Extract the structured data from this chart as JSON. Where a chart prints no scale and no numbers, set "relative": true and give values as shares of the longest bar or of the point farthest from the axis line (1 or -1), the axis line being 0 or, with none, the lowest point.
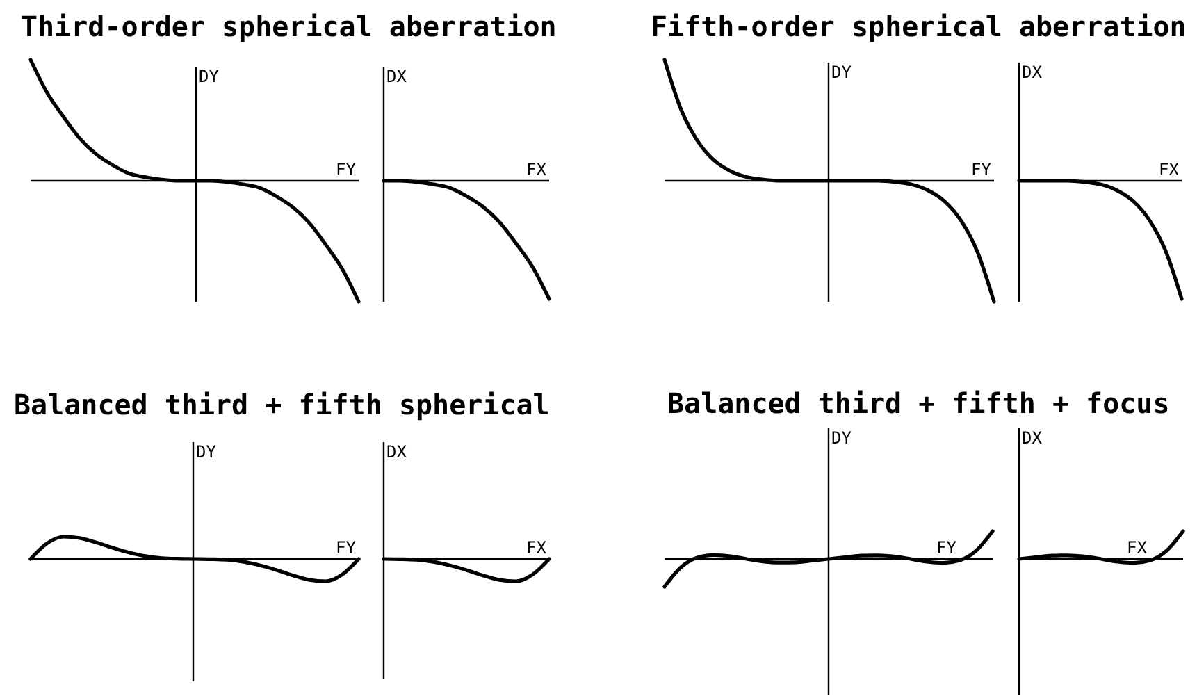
{
  "chart_data": [
    {
      "type": "line",
      "title": "Third-order spherical aberration",
      "xlabel": "FY",
      "ylabel": "DY",
      "relative": true,
      "color": "#000000",
      "categories": [
        null,
        null,
        null,
        null,
        null,
        null,
        null,
        null,
        null,
        null,
        null,
        null,
        null,
        null,
        null,
        null,
        null,
        null,
        null,
        null,
        null
      ],
      "values": [
        1,
        0.73,
        0.53,
        0.35,
        0.22,
        0.13,
        0.06,
        0.03,
        0.01,
        0,
        0,
        0,
        -0.01,
        -0.03,
        -0.06,
        -0.13,
        -0.22,
        -0.35,
        -0.53,
        -0.73,
        -1
      ]
    },
    {
      "type": "line",
      "xlabel": "FX",
      "ylabel": "DX",
      "relative": true,
      "color": "#000000",
      "categories": [
        null,
        null,
        null,
        null,
        null,
        null,
        null,
        null,
        null,
        null,
        null
      ],
      "values": [
        0,
        0,
        -0.01,
        -0.03,
        -0.06,
        -0.13,
        -0.22,
        -0.35,
        -0.53,
        -0.73,
        -1
      ]
    },
    {
      "type": "line",
      "title": "Fifth-order spherical aberration",
      "xlabel": "FY",
      "ylabel": "DY",
      "relative": true,
      "color": "#000000",
      "categories": [
        null,
        null,
        null,
        null,
        null,
        null,
        null,
        null,
        null,
        null,
        null,
        null,
        null,
        null,
        null,
        null,
        null,
        null,
        null,
        null,
        null
      ],
      "values": [
        1,
        0.59,
        0.33,
        0.17,
        0.08,
        0.03,
        0.01,
        0,
        0,
        0,
        0,
        0,
        0,
        0,
        -0.01,
        -0.03,
        -0.08,
        -0.17,
        -0.33,
        -0.59,
        -1
      ]
    },
    {
      "type": "line",
      "xlabel": "FX",
      "ylabel": "DX",
      "relative": true,
      "color": "#000000",
      "categories": [
        null,
        null,
        null,
        null,
        null,
        null,
        null,
        null,
        null,
        null,
        null
      ],
      "values": [
        0,
        0,
        0,
        0,
        -0.01,
        -0.03,
        -0.08,
        -0.17,
        -0.33,
        -0.59,
        -1
      ]
    },
    {
      "type": "line",
      "title": "Balanced third + fifth spherical",
      "xlabel": "FY",
      "ylabel": "DY",
      "relative": true,
      "color": "#000000",
      "categories": [
        null,
        null,
        null,
        null,
        null,
        null,
        null,
        null,
        null,
        null,
        null,
        null,
        null,
        null,
        null,
        null,
        null,
        null,
        null,
        null,
        null
      ],
      "values": [
        0,
        0.7,
        1,
        0.94,
        0.74,
        0.5,
        0.29,
        0.13,
        0.04,
        0.01,
        0,
        -0.01,
        -0.04,
        -0.13,
        -0.29,
        -0.5,
        -0.74,
        -0.94,
        -1,
        -0.7,
        0
      ]
    },
    {
      "type": "line",
      "xlabel": "FX",
      "ylabel": "DX",
      "relative": true,
      "color": "#000000",
      "categories": [
        null,
        null,
        null,
        null,
        null,
        null,
        null,
        null,
        null,
        null,
        null
      ],
      "values": [
        0,
        -0.01,
        -0.04,
        -0.13,
        -0.29,
        -0.5,
        -0.74,
        -0.94,
        -1,
        -0.7,
        0
      ]
    },
    {
      "type": "line",
      "title": "Balanced third + fifth + focus",
      "xlabel": "FY",
      "ylabel": "DY",
      "relative": true,
      "color": "#000000",
      "categories": [
        null,
        null,
        null,
        null,
        null,
        null,
        null,
        null,
        null,
        null,
        null,
        null,
        null,
        null,
        null,
        null,
        null,
        null,
        null,
        null,
        null
      ],
      "values": [
        -1,
        -0.3,
        0.05,
        0.14,
        0.1,
        0,
        -0.09,
        -0.13,
        -0.12,
        -0.06,
        0,
        0.06,
        0.12,
        0.13,
        0.09,
        0,
        -0.1,
        -0.14,
        -0.05,
        0.3,
        1
      ]
    },
    {
      "type": "line",
      "xlabel": "FX",
      "ylabel": "DX",
      "relative": true,
      "color": "#000000",
      "categories": [
        null,
        null,
        null,
        null,
        null,
        null,
        null,
        null,
        null,
        null,
        null
      ],
      "values": [
        0,
        0.06,
        0.12,
        0.13,
        0.09,
        0,
        -0.1,
        -0.14,
        -0.05,
        0.3,
        1
      ]
    }
  ]
}
